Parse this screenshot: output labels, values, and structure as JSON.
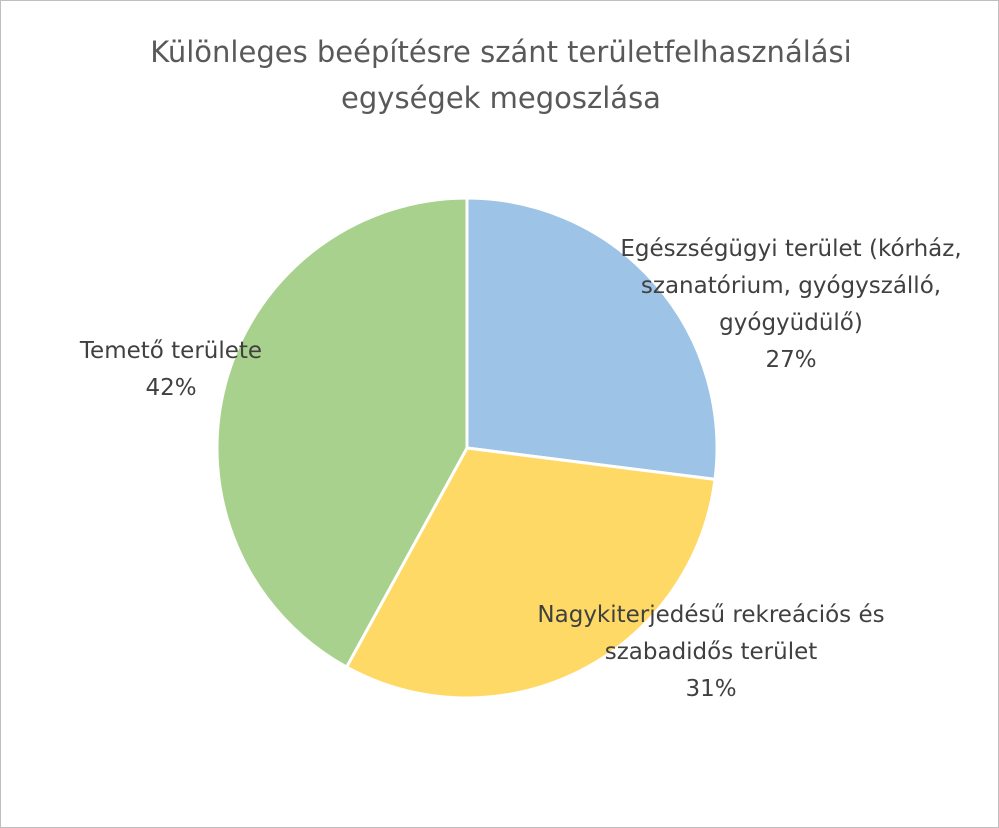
{
  "chart_data": {
    "type": "pie",
    "title": "Különleges beépítésre szánt területfelhasználási egységek megoszlása",
    "categories": [
      "Egészségügyi terület (kórház, szanatórium, gyógyszálló, gyógyüdülő)",
      "Nagykiterjedésű rekreációs és szabadidős terület",
      "Temető területe"
    ],
    "values": [
      27,
      31,
      42
    ],
    "value_labels": [
      "27%",
      "31%",
      "42%"
    ],
    "colors": [
      "#9dc3e6",
      "#ffd966",
      "#a9d18e"
    ]
  }
}
